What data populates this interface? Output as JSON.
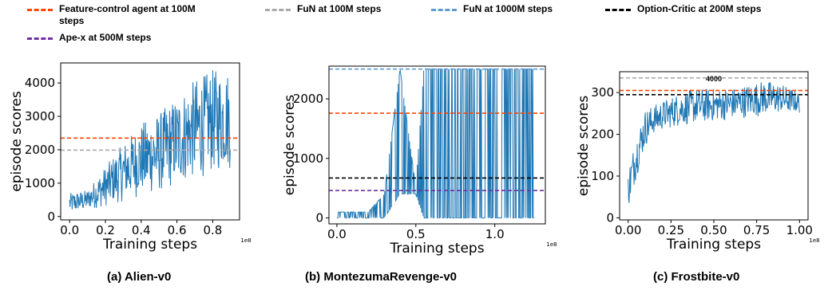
{
  "legend": [
    {
      "label": "Feature-control agent at 100M steps",
      "color": "#ff4500"
    },
    {
      "label": "FuN at 100M steps",
      "color": "#a9a9a9"
    },
    {
      "label": "FuN at 1000M steps",
      "color": "#5b9bd5"
    },
    {
      "label": "Option-Critic at 200M steps",
      "color": "#000000"
    },
    {
      "label": "Ape-x at 500M steps",
      "color": "#7030a0"
    }
  ],
  "chart_data": [
    {
      "type": "line",
      "title": "",
      "caption": "(a) Alien-v0",
      "xlabel": "Training steps",
      "ylabel": "episode scores",
      "x_multiplier": "1e8",
      "xlim": [
        -0.05,
        0.95
      ],
      "ylim": [
        -100,
        4600
      ],
      "xticks": [
        0.0,
        0.2,
        0.4,
        0.6,
        0.8
      ],
      "xtick_labels": [
        "0.0",
        "0.2",
        "0.4",
        "0.6",
        "0.8"
      ],
      "yticks": [
        0,
        1000,
        2000,
        3000,
        4000
      ],
      "ytick_labels": [
        "0",
        "1000",
        "2000",
        "3000",
        "4000"
      ],
      "reference_lines": [
        {
          "y": 2350,
          "color": "#ff4500"
        },
        {
          "y": 1990,
          "color": "#a9a9a9"
        }
      ],
      "series": [
        {
          "color": "#1f77b4",
          "x": [
            0.0,
            0.1,
            0.2,
            0.3,
            0.4,
            0.5,
            0.6,
            0.7,
            0.8,
            0.9
          ],
          "low": [
            100,
            200,
            300,
            450,
            600,
            700,
            900,
            1100,
            1300,
            1400
          ],
          "high": [
            700,
            800,
            1500,
            2200,
            2800,
            3100,
            3600,
            4100,
            4400,
            4400
          ]
        }
      ],
      "annotation": ""
    },
    {
      "type": "line",
      "title": "",
      "caption": "(b) MontezumaRevenge-v0",
      "xlabel": "Training steps",
      "ylabel": "episode scores",
      "x_multiplier": "1e8",
      "xlim": [
        -0.05,
        1.32
      ],
      "ylim": [
        -100,
        2550
      ],
      "xticks": [
        0.0,
        0.5,
        1.0
      ],
      "xtick_labels": [
        "0.0",
        "0.5",
        "1.0"
      ],
      "yticks": [
        0,
        1000,
        2000
      ],
      "ytick_labels": [
        "0",
        "1000",
        "2000"
      ],
      "reference_lines": [
        {
          "y": 2500,
          "color": "#5b9bd5"
        },
        {
          "y": 1760,
          "color": "#ff4500"
        },
        {
          "y": 670,
          "color": "#000000"
        },
        {
          "y": 460,
          "color": "#7030a0"
        }
      ],
      "series": [
        {
          "color": "#1f77b4",
          "x": [
            0.0,
            0.1,
            0.2,
            0.3,
            0.4,
            0.5,
            0.55,
            0.6,
            0.7,
            0.8,
            0.9,
            1.0,
            1.1,
            1.2,
            1.25
          ],
          "low": [
            0,
            0,
            0,
            0,
            400,
            400,
            0,
            0,
            0,
            0,
            0,
            0,
            0,
            0,
            0
          ],
          "high": [
            100,
            100,
            100,
            400,
            2500,
            500,
            2500,
            2500,
            2500,
            2500,
            2500,
            2500,
            2500,
            2500,
            2500
          ]
        }
      ],
      "annotation": ""
    },
    {
      "type": "line",
      "title": "",
      "caption": "(c) Frostbite-v0",
      "xlabel": "Training steps",
      "ylabel": "episode scores",
      "x_multiplier": "1e8",
      "xlim": [
        -0.05,
        1.05
      ],
      "ylim": [
        -5,
        350
      ],
      "xticks": [
        0.0,
        0.25,
        0.5,
        0.75,
        1.0
      ],
      "xtick_labels": [
        "0.00",
        "0.25",
        "0.50",
        "0.75",
        "1.00"
      ],
      "yticks": [
        0,
        100,
        200,
        300
      ],
      "ytick_labels": [
        "0",
        "100",
        "200",
        "300"
      ],
      "reference_lines": [
        {
          "y": 335,
          "color": "#a9a9a9"
        },
        {
          "y": 305,
          "color": "#ff4500"
        },
        {
          "y": 295,
          "color": "#000000"
        }
      ],
      "series": [
        {
          "color": "#1f77b4",
          "x": [
            0.0,
            0.05,
            0.1,
            0.15,
            0.2,
            0.3,
            0.4,
            0.5,
            0.6,
            0.7,
            0.8,
            0.9,
            1.0
          ],
          "low": [
            20,
            100,
            170,
            200,
            210,
            220,
            225,
            230,
            235,
            240,
            245,
            250,
            250
          ],
          "high": [
            120,
            200,
            260,
            270,
            280,
            300,
            310,
            310,
            310,
            320,
            330,
            320,
            300
          ]
        }
      ],
      "annotation": "4000"
    }
  ]
}
